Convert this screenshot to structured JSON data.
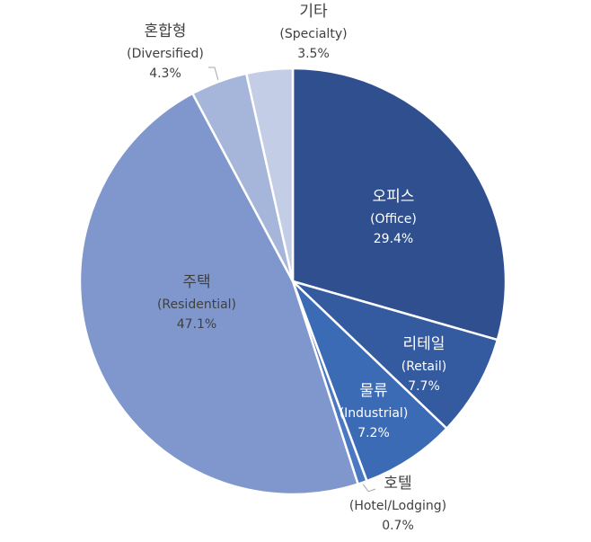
{
  "chart_data": {
    "type": "pie",
    "title": "",
    "slices": [
      {
        "ko": "오피스",
        "en": "(Office)",
        "value": 29.4,
        "pct_label": "29.4%",
        "color": "#2F4F8F",
        "text_color": "#ffffff"
      },
      {
        "ko": "리테일",
        "en": "(Retail)",
        "value": 7.7,
        "pct_label": "7.7%",
        "color": "#345BA0",
        "text_color": "#ffffff"
      },
      {
        "ko": "물류",
        "en": "(Industrial)",
        "value": 7.2,
        "pct_label": "7.2%",
        "color": "#3C6BB5",
        "text_color": "#ffffff"
      },
      {
        "ko": "호텔",
        "en": "(Hotel/Lodging)",
        "value": 0.7,
        "pct_label": "0.7%",
        "color": "#4A78C2",
        "text_color": "#404040"
      },
      {
        "ko": "주택",
        "en": "(Residential)",
        "value": 47.1,
        "pct_label": "47.1%",
        "color": "#7F97CC",
        "text_color": "#404040"
      },
      {
        "ko": "혼합형",
        "en": "(Diversified)",
        "value": 4.3,
        "pct_label": "4.3%",
        "color": "#A6B6DA",
        "text_color": "#404040"
      },
      {
        "ko": "기타",
        "en": "(Specialty)",
        "value": 3.5,
        "pct_label": "3.5%",
        "color": "#C3CDE6",
        "text_color": "#404040"
      }
    ]
  }
}
